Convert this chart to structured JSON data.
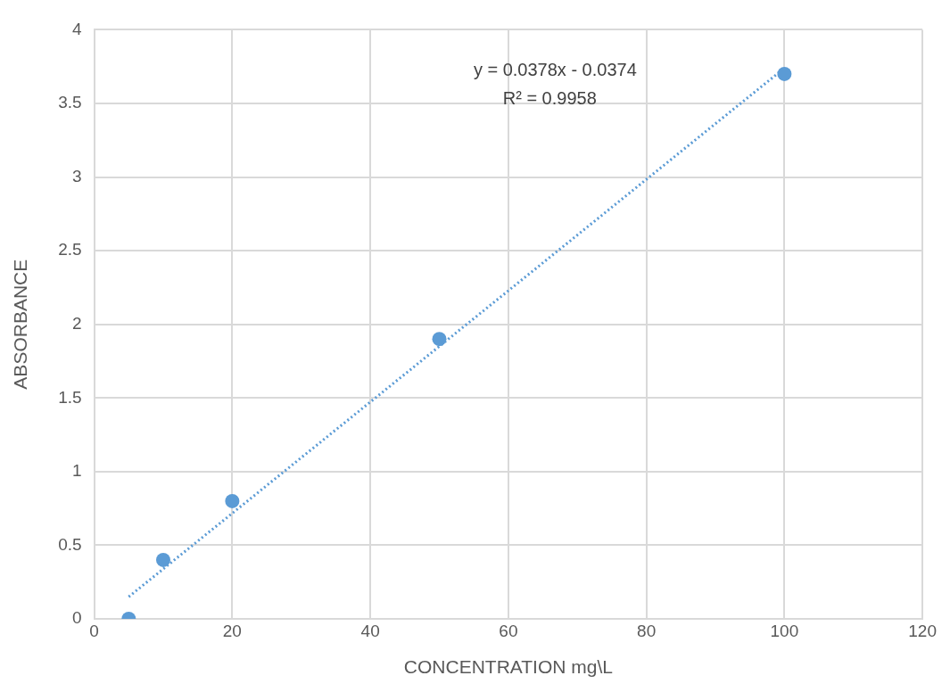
{
  "chart_data": {
    "type": "scatter",
    "xlabel": "CONCENTRATION mg\\L",
    "ylabel": "ABSORBANCE",
    "x": [
      5,
      10,
      20,
      50,
      100
    ],
    "series": [
      {
        "color": "#5b9bd5",
        "values": [
          0,
          0.4,
          0.8,
          1.9,
          3.7
        ],
        "marker": "circle"
      },
      {
        "type": "line",
        "color": "#5b9bd5",
        "x": [
          5,
          100
        ],
        "values": [
          0.15,
          3.74
        ],
        "line_style": "dotted",
        "marker": "none"
      }
    ],
    "xlim": [
      0,
      120
    ],
    "xticks": [
      0,
      20,
      40,
      60,
      80,
      100,
      120
    ],
    "ylim": [
      0,
      4
    ],
    "yticks": [
      0,
      0.5,
      1,
      1.5,
      2,
      2.5,
      3,
      3.5,
      4
    ],
    "grid": true,
    "legend": false,
    "annotations": [
      "y = 0.0378x - 0.0374",
      "R² = 0.9958"
    ]
  }
}
